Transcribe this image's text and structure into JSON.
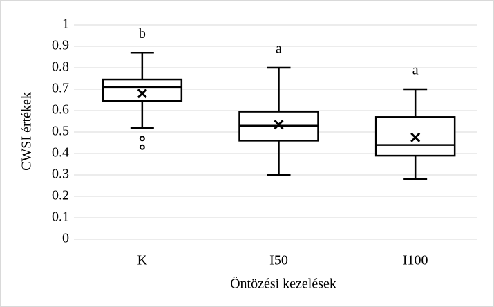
{
  "chart_data": {
    "type": "box",
    "x_label": "Öntözési kezelések",
    "y_label": "CWSI értékek",
    "categories": [
      "K",
      "I50",
      "I100"
    ],
    "values": [
      {
        "min": 0.52,
        "q1": 0.645,
        "median": 0.71,
        "q3": 0.745,
        "max": 0.87,
        "mean": 0.68,
        "outliers": [
          0.47,
          0.43
        ]
      },
      {
        "min": 0.3,
        "q1": 0.46,
        "median": 0.53,
        "q3": 0.595,
        "max": 0.8,
        "mean": 0.535,
        "outliers": []
      },
      {
        "min": 0.28,
        "q1": 0.39,
        "median": 0.44,
        "q3": 0.57,
        "max": 0.7,
        "mean": 0.475,
        "outliers": []
      }
    ],
    "annotations": [
      "b",
      "a",
      "a"
    ],
    "color": "#000000",
    "ylim": [
      0,
      1
    ],
    "yticks": [
      0,
      0.1,
      0.2,
      0.3,
      0.4,
      0.5,
      0.6,
      0.7,
      0.8,
      0.9,
      1
    ],
    "grid": true
  }
}
